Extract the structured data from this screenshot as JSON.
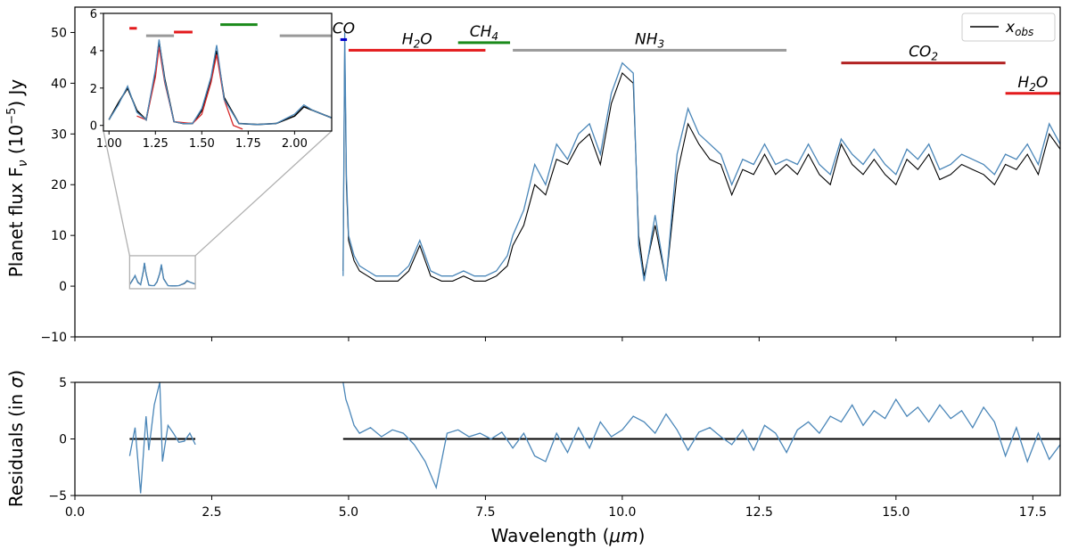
{
  "chart_data": [
    {
      "type": "line",
      "panel": "top",
      "ylabel": "Planet flux F",
      "ylabel_sub": "ν",
      "ylabel_units_pre": " (10",
      "ylabel_exp": "−5",
      "ylabel_units_post": ") Jy",
      "xlim": [
        0,
        18
      ],
      "ylim": [
        -10,
        55
      ],
      "yticks": [
        -10,
        0,
        10,
        20,
        30,
        40,
        50
      ],
      "legend": {
        "placement": "top-right",
        "label_main": "x",
        "label_sub": "obs"
      },
      "series": [
        {
          "key": "observed",
          "color": "#000000",
          "x": [
            1.0,
            1.05,
            1.1,
            1.15,
            1.2,
            1.25,
            1.27,
            1.3,
            1.35,
            1.4,
            1.45,
            1.5,
            1.55,
            1.58,
            1.62,
            1.7,
            1.8,
            1.9,
            2.0,
            2.05,
            2.1,
            2.2,
            4.9,
            4.93,
            4.96,
            5.0,
            5.1,
            5.2,
            5.35,
            5.5,
            5.7,
            5.9,
            6.1,
            6.3,
            6.5,
            6.7,
            6.9,
            7.1,
            7.3,
            7.5,
            7.7,
            7.9,
            8.0,
            8.2,
            8.4,
            8.6,
            8.8,
            9.0,
            9.2,
            9.4,
            9.6,
            9.8,
            10.0,
            10.2,
            10.3,
            10.4,
            10.6,
            10.8,
            11.0,
            11.2,
            11.4,
            11.6,
            11.8,
            12.0,
            12.2,
            12.4,
            12.6,
            12.8,
            13.0,
            13.2,
            13.4,
            13.6,
            13.8,
            14.0,
            14.2,
            14.4,
            14.6,
            14.8,
            15.0,
            15.2,
            15.4,
            15.6,
            15.8,
            16.0,
            16.2,
            16.4,
            16.6,
            16.8,
            17.0,
            17.2,
            17.4,
            17.6,
            17.8,
            18.0
          ],
          "y": [
            0.3,
            1.2,
            2.0,
            0.8,
            0.3,
            2.8,
            4.5,
            2.5,
            0.2,
            0.1,
            0.1,
            0.8,
            2.5,
            4.0,
            1.5,
            0.1,
            0.05,
            0.1,
            0.5,
            1.0,
            0.8,
            0.4,
            3,
            48,
            20,
            9,
            5,
            3,
            2,
            1,
            1,
            1,
            3,
            8,
            2,
            1,
            1,
            2,
            1,
            1,
            2,
            4,
            8,
            12,
            20,
            18,
            25,
            24,
            28,
            30,
            24,
            36,
            42,
            40,
            10,
            2,
            12,
            1,
            22,
            32,
            28,
            25,
            24,
            18,
            23,
            22,
            26,
            22,
            24,
            22,
            26,
            22,
            20,
            28,
            24,
            22,
            25,
            22,
            20,
            25,
            23,
            26,
            21,
            22,
            24,
            23,
            22,
            20,
            24,
            23,
            26,
            22,
            30,
            27
          ]
        },
        {
          "key": "model",
          "color": "#4a86b8",
          "x": [
            1.0,
            1.05,
            1.1,
            1.15,
            1.2,
            1.25,
            1.27,
            1.3,
            1.35,
            1.4,
            1.45,
            1.5,
            1.55,
            1.58,
            1.62,
            1.7,
            1.8,
            1.9,
            2.0,
            2.05,
            2.1,
            2.2,
            4.9,
            4.93,
            4.96,
            5.0,
            5.1,
            5.2,
            5.35,
            5.5,
            5.7,
            5.9,
            6.1,
            6.3,
            6.5,
            6.7,
            6.9,
            7.1,
            7.3,
            7.5,
            7.7,
            7.9,
            8.0,
            8.2,
            8.4,
            8.6,
            8.8,
            9.0,
            9.2,
            9.4,
            9.6,
            9.8,
            10.0,
            10.2,
            10.3,
            10.4,
            10.6,
            10.8,
            11.0,
            11.2,
            11.4,
            11.6,
            11.8,
            12.0,
            12.2,
            12.4,
            12.6,
            12.8,
            13.0,
            13.2,
            13.4,
            13.6,
            13.8,
            14.0,
            14.2,
            14.4,
            14.6,
            14.8,
            15.0,
            15.2,
            15.4,
            15.6,
            15.8,
            16.0,
            16.2,
            16.4,
            16.6,
            16.8,
            17.0,
            17.2,
            17.4,
            17.6,
            17.8,
            18.0
          ],
          "y": [
            0.3,
            1.1,
            2.1,
            0.7,
            0.3,
            3.0,
            4.6,
            2.4,
            0.2,
            0.1,
            0.1,
            0.9,
            2.6,
            4.3,
            1.4,
            0.1,
            0.05,
            0.1,
            0.6,
            1.1,
            0.8,
            0.4,
            2,
            50,
            22,
            10,
            6,
            4,
            3,
            2,
            2,
            2,
            4,
            9,
            3,
            2,
            2,
            3,
            2,
            2,
            3,
            6,
            10,
            15,
            24,
            20,
            28,
            25,
            30,
            32,
            26,
            38,
            44,
            42,
            8,
            1,
            14,
            1,
            26,
            35,
            30,
            28,
            26,
            20,
            25,
            24,
            28,
            24,
            25,
            24,
            28,
            24,
            22,
            29,
            26,
            24,
            27,
            24,
            22,
            27,
            25,
            28,
            23,
            24,
            26,
            25,
            24,
            22,
            26,
            25,
            28,
            24,
            32,
            28
          ]
        }
      ],
      "molecule_bands": [
        {
          "label_main": "CO",
          "label_sub": "",
          "x_start": 4.85,
          "x_end": 4.97,
          "level": 48.6,
          "color": "#0000cc"
        },
        {
          "label_main": "H",
          "label_sub": "2",
          "label_post": "O",
          "x_start": 5.0,
          "x_end": 7.5,
          "level": 46.5,
          "color": "#e31a1c"
        },
        {
          "label_main": "CH",
          "label_sub": "4",
          "x_start": 7.0,
          "x_end": 7.95,
          "level": 48.0,
          "color": "#1a8a1a"
        },
        {
          "label_main": "NH",
          "label_sub": "3",
          "x_start": 8.0,
          "x_end": 13.0,
          "level": 46.5,
          "color": "#999999"
        },
        {
          "label_main": "CO",
          "label_sub": "2",
          "x_start": 14.0,
          "x_end": 17.0,
          "level": 44.0,
          "color": "#b22222"
        },
        {
          "label_main": "H",
          "label_sub": "2",
          "label_post": "O",
          "x_start": 17.0,
          "x_end": 18.0,
          "level": 38.0,
          "color": "#e31a1c"
        }
      ],
      "inset": {
        "xlim": [
          0.97,
          2.2
        ],
        "ylim": [
          -0.3,
          6
        ],
        "xticks": [
          "1.00",
          "1.25",
          "1.50",
          "1.75",
          "2.00"
        ],
        "xtick_values": [
          1.0,
          1.25,
          1.5,
          1.75,
          2.0
        ],
        "yticks": [
          "0",
          "2",
          "4",
          "6"
        ],
        "ytick_values": [
          0,
          2,
          4,
          6
        ],
        "zoom_region": {
          "x": [
            1.0,
            2.2
          ],
          "y": [
            -0.5,
            6
          ]
        },
        "bands": [
          {
            "x_start": 1.11,
            "x_end": 1.15,
            "level": 5.2,
            "color": "#e31a1c"
          },
          {
            "x_start": 1.2,
            "x_end": 1.35,
            "level": 4.8,
            "color": "#999999"
          },
          {
            "x_start": 1.35,
            "x_end": 1.45,
            "level": 5.0,
            "color": "#e31a1c"
          },
          {
            "x_start": 1.6,
            "x_end": 1.8,
            "level": 5.4,
            "color": "#1a8a1a"
          },
          {
            "x_start": 1.92,
            "x_end": 2.2,
            "level": 4.8,
            "color": "#999999"
          }
        ],
        "extra_series": {
          "color": "#d62728",
          "x": [
            1.15,
            1.2,
            1.25,
            1.27,
            1.3,
            1.35,
            1.45,
            1.5,
            1.55,
            1.58,
            1.62,
            1.67,
            1.72
          ],
          "y": [
            0.5,
            0.3,
            2.6,
            4.2,
            2.3,
            0.2,
            0.1,
            0.6,
            2.3,
            3.8,
            1.4,
            0.0,
            -0.2
          ]
        }
      }
    },
    {
      "type": "line",
      "panel": "bottom",
      "xlabel": "Wavelength (",
      "xlabel_unit": "μm",
      "xlabel_close": ")",
      "ylabel": "Residuals (in ",
      "ylabel_symbol": "σ",
      "ylabel_close": ")",
      "xlim": [
        0,
        18
      ],
      "ylim": [
        -5,
        5
      ],
      "xticks": [
        "0.0",
        "2.5",
        "5.0",
        "7.5",
        "10.0",
        "12.5",
        "15.0",
        "17.5"
      ],
      "xtick_values": [
        0,
        2.5,
        5,
        7.5,
        10,
        12.5,
        15,
        17.5
      ],
      "yticks": [
        -5,
        0,
        5
      ],
      "zero_line": {
        "color": "#000000",
        "segments": [
          [
            1.0,
            2.2
          ],
          [
            4.9,
            18.0
          ]
        ]
      },
      "series": [
        {
          "key": "residuals",
          "color": "#4a86b8",
          "x": [
            1.0,
            1.1,
            1.2,
            1.3,
            1.35,
            1.45,
            1.55,
            1.6,
            1.7,
            1.8,
            1.9,
            2.0,
            2.1,
            2.2,
            4.9,
            4.95,
            5.0,
            5.1,
            5.2,
            5.4,
            5.6,
            5.8,
            6.0,
            6.2,
            6.4,
            6.6,
            6.8,
            7.0,
            7.2,
            7.4,
            7.6,
            7.8,
            8.0,
            8.2,
            8.4,
            8.6,
            8.8,
            9.0,
            9.2,
            9.4,
            9.6,
            9.8,
            10.0,
            10.2,
            10.4,
            10.6,
            10.8,
            11.0,
            11.2,
            11.4,
            11.6,
            11.8,
            12.0,
            12.2,
            12.4,
            12.6,
            12.8,
            13.0,
            13.2,
            13.4,
            13.6,
            13.8,
            14.0,
            14.2,
            14.4,
            14.6,
            14.8,
            15.0,
            15.2,
            15.4,
            15.6,
            15.8,
            16.0,
            16.2,
            16.4,
            16.6,
            16.8,
            17.0,
            17.2,
            17.4,
            17.6,
            17.8,
            18.0
          ],
          "y": [
            -1.5,
            1.0,
            -4.8,
            2.0,
            -1.0,
            3.0,
            5.0,
            -2.0,
            1.2,
            0.5,
            -0.3,
            -0.2,
            0.5,
            -0.5,
            5.0,
            3.5,
            2.8,
            1.2,
            0.5,
            1.0,
            0.2,
            0.8,
            0.5,
            -0.5,
            -2.0,
            -4.3,
            0.5,
            0.8,
            0.2,
            0.5,
            0.0,
            0.6,
            -0.8,
            0.5,
            -1.5,
            -2.0,
            0.5,
            -1.2,
            1.0,
            -0.8,
            1.5,
            0.2,
            0.8,
            2.0,
            1.5,
            0.5,
            2.2,
            0.8,
            -1.0,
            0.6,
            1.0,
            0.2,
            -0.5,
            0.8,
            -1.0,
            1.2,
            0.5,
            -1.2,
            0.8,
            1.5,
            0.5,
            2.0,
            1.5,
            3.0,
            1.2,
            2.5,
            1.8,
            3.5,
            2.0,
            2.8,
            1.5,
            3.0,
            1.8,
            2.5,
            1.0,
            2.8,
            1.5,
            -1.5,
            1.0,
            -2.0,
            0.5,
            -1.8,
            -0.5
          ]
        }
      ]
    }
  ]
}
